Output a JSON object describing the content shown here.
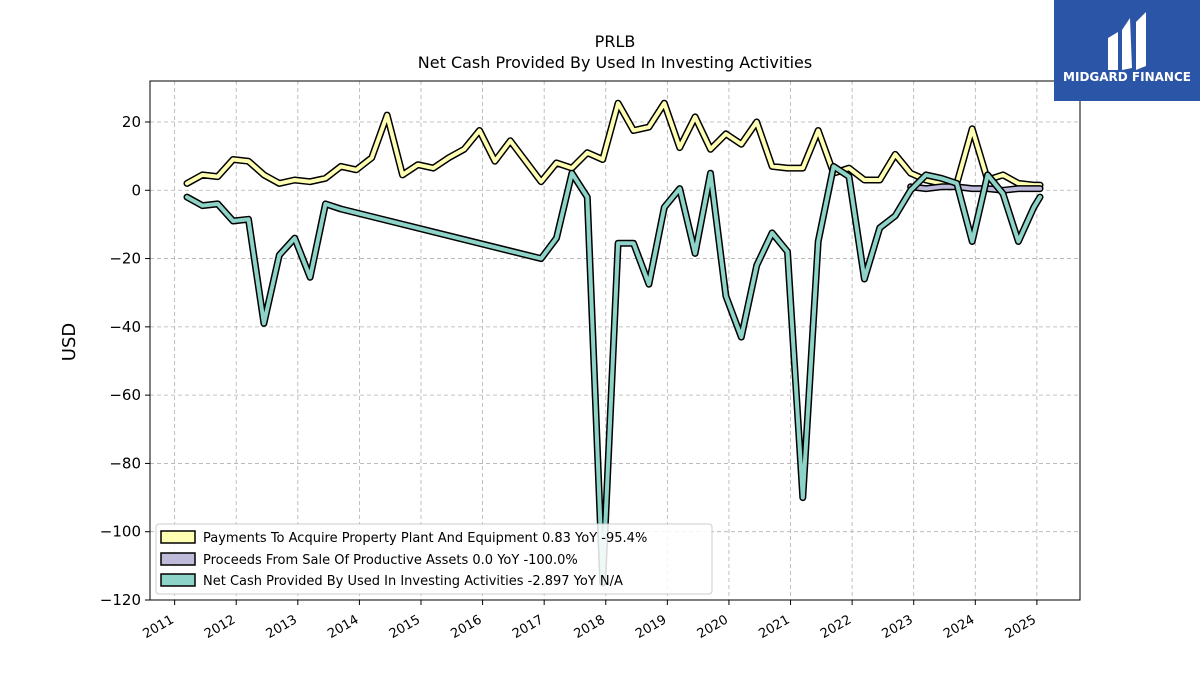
{
  "chart_data": {
    "type": "line",
    "title": "PRLB",
    "subtitle": "Net Cash Provided By Used In Investing Activities",
    "ylabel": "USD",
    "xlabel": "",
    "ylim": [
      -120,
      32
    ],
    "xlim": [
      2010.6,
      2025.7
    ],
    "yticks": [
      20,
      0,
      -20,
      -40,
      -60,
      -80,
      -100,
      -120
    ],
    "ytick_labels": [
      "20",
      "0",
      "−20",
      "−40",
      "−60",
      "−80",
      "−100",
      "−120"
    ],
    "xticks": [
      2011,
      2012,
      2013,
      2014,
      2015,
      2016,
      2017,
      2018,
      2019,
      2020,
      2021,
      2022,
      2023,
      2024,
      2025
    ],
    "xtick_labels": [
      "2011",
      "2012",
      "2013",
      "2014",
      "2015",
      "2016",
      "2017",
      "2018",
      "2019",
      "2020",
      "2021",
      "2022",
      "2023",
      "2024",
      "2025"
    ],
    "grid": true,
    "legend_position": "lower-left",
    "series": [
      {
        "name": "Payments To Acquire Property Plant And Equipment",
        "legend_label": "Payments To Acquire Property Plant And Equipment  0.83 YoY -95.4%",
        "color": "#ffffb3",
        "x": [
          2011.2,
          2011.45,
          2011.7,
          2011.95,
          2012.2,
          2012.45,
          2012.7,
          2012.95,
          2013.2,
          2013.45,
          2013.7,
          2013.95,
          2014.2,
          2014.45,
          2014.7,
          2014.95,
          2015.2,
          2015.45,
          2015.7,
          2015.95,
          2016.2,
          2016.45,
          2016.7,
          2016.95,
          2017.2,
          2017.45,
          2017.7,
          2017.95,
          2018.2,
          2018.45,
          2018.7,
          2018.95,
          2019.2,
          2019.45,
          2019.7,
          2019.95,
          2020.2,
          2020.45,
          2020.7,
          2020.95,
          2021.2,
          2021.45,
          2021.7,
          2021.95,
          2022.2,
          2022.45,
          2022.7,
          2022.95,
          2023.2,
          2023.45,
          2023.7,
          2023.95,
          2024.2,
          2024.45,
          2024.7,
          2024.95,
          2025.05
        ],
        "values": [
          2.0,
          4.5,
          4.0,
          9.0,
          8.5,
          4.5,
          2.0,
          3.0,
          2.5,
          3.5,
          7.0,
          6.0,
          9.5,
          22.0,
          4.5,
          7.5,
          6.5,
          9.5,
          12.0,
          17.5,
          8.5,
          14.5,
          8.5,
          2.5,
          8.0,
          6.5,
          11.0,
          9.0,
          25.5,
          17.5,
          18.5,
          25.5,
          12.5,
          21.5,
          12.0,
          16.5,
          13.5,
          20.0,
          7.0,
          6.5,
          6.5,
          17.5,
          5.0,
          6.5,
          3.0,
          3.0,
          10.5,
          5.0,
          3.0,
          2.0,
          2.0,
          18.0,
          3.0,
          4.5,
          2.0,
          1.5,
          1.5
        ]
      },
      {
        "name": "Proceeds From Sale Of Productive Assets",
        "legend_label": "Proceeds From Sale Of Productive Assets  0.0 YoY -100.0%",
        "color": "#bebada",
        "x": [
          2022.95,
          2023.2,
          2023.45,
          2023.7,
          2023.95,
          2024.2,
          2024.45,
          2024.7,
          2024.95,
          2025.05
        ],
        "values": [
          1.0,
          0.5,
          1.0,
          1.0,
          0.5,
          0.5,
          0.0,
          0.5,
          0.5,
          0.5
        ]
      },
      {
        "name": "Net Cash Provided By Used In Investing Activities",
        "legend_label": "Net Cash Provided By Used In Investing Activities  -2.897 YoY N/A",
        "color": "#8dd3c7",
        "x": [
          2011.2,
          2011.45,
          2011.7,
          2011.95,
          2012.2,
          2012.45,
          2012.7,
          2012.95,
          2013.2,
          2013.45,
          2013.7,
          2016.95,
          2017.2,
          2017.45,
          2017.7,
          2017.95,
          2018.2,
          2018.45,
          2018.7,
          2018.95,
          2019.2,
          2019.45,
          2019.7,
          2019.95,
          2020.2,
          2020.45,
          2020.7,
          2020.95,
          2021.2,
          2021.45,
          2021.7,
          2021.95,
          2022.2,
          2022.45,
          2022.7,
          2022.95,
          2023.2,
          2023.45,
          2023.7,
          2023.95,
          2024.2,
          2024.45,
          2024.7,
          2024.95,
          2025.05
        ],
        "values": [
          -2.0,
          -4.5,
          -4.0,
          -9.0,
          -8.5,
          -39.0,
          -19.0,
          -14.0,
          -25.5,
          -4.0,
          -5.5,
          -20.0,
          -14.0,
          5.0,
          -2.0,
          -115.0,
          -15.5,
          -15.5,
          -27.5,
          -5.0,
          0.5,
          -18.5,
          5.0,
          -31.0,
          -43.0,
          -22.0,
          -12.5,
          -18.0,
          -90.0,
          -15.0,
          7.0,
          4.0,
          -26.0,
          -11.0,
          -7.5,
          0.0,
          4.5,
          3.5,
          2.0,
          -15.0,
          4.5,
          -1.0,
          -15.0,
          -5.0,
          -2.0
        ]
      }
    ]
  },
  "logo": {
    "text": "MIDGARD FINANCE",
    "background": "#2b55a6"
  }
}
